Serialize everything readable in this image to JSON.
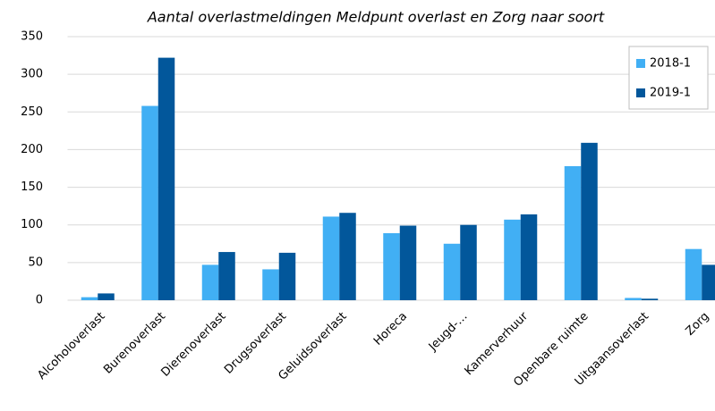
{
  "chart_data": {
    "type": "bar",
    "title": "Aantal overlastmeldingen Meldpunt overlast en Zorg naar soort",
    "categories": [
      "Alcoholoverlast",
      "Burenoverlast",
      "Dierenoverlast",
      "Drugsoverlast",
      "Geluidsoverlast",
      "Horeca",
      "Jeugd-…",
      "Kamerverhuur",
      "Openbare ruimte",
      "Uitgaansoverlast",
      "Zorg"
    ],
    "series": [
      {
        "name": "2018-1",
        "color": "#41aff4",
        "values": [
          4,
          258,
          47,
          41,
          111,
          89,
          75,
          107,
          178,
          3,
          68
        ]
      },
      {
        "name": "2019-1",
        "color": "#02579b",
        "values": [
          9,
          322,
          64,
          63,
          116,
          99,
          100,
          114,
          209,
          2,
          47
        ]
      }
    ],
    "ylim": [
      0,
      350
    ],
    "yticks": [
      0,
      50,
      100,
      150,
      200,
      250,
      300,
      350
    ],
    "grid": true,
    "legend": "top-right"
  }
}
